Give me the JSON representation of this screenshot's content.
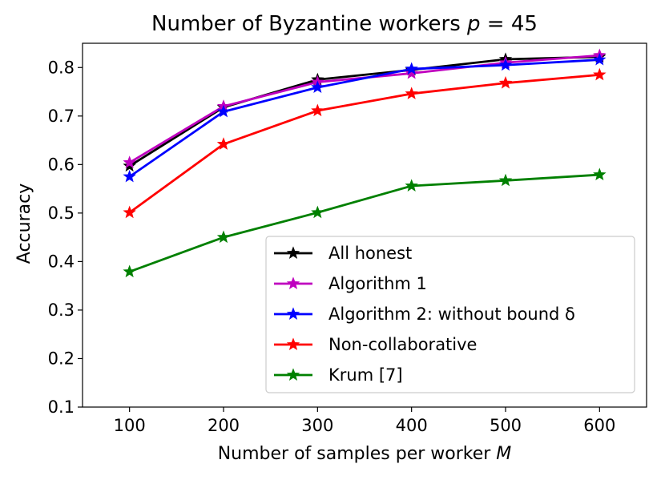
{
  "chart_data": {
    "type": "line",
    "title": "Number of Byzantine workers p = 45",
    "xlabel": "Number of samples per worker M",
    "ylabel": "Accuracy",
    "x": [
      100,
      200,
      300,
      400,
      500,
      600
    ],
    "xlim": [
      50,
      650
    ],
    "ylim": [
      0.1,
      0.85
    ],
    "xticks": [
      100,
      200,
      300,
      400,
      500,
      600
    ],
    "yticks": [
      0.1,
      0.2,
      0.3,
      0.4,
      0.5,
      0.6,
      0.7,
      0.8
    ],
    "xtick_labels": [
      "100",
      "200",
      "300",
      "400",
      "500",
      "600"
    ],
    "ytick_labels": [
      "0.1",
      "0.2",
      "0.3",
      "0.4",
      "0.5",
      "0.6",
      "0.7",
      "0.8"
    ],
    "grid": false,
    "legend_position": "lower-right",
    "marker": "star",
    "series": [
      {
        "name": "All honest",
        "color": "#000000",
        "values": [
          0.597,
          0.718,
          0.775,
          0.795,
          0.817,
          0.822
        ]
      },
      {
        "name": "Algorithm 1",
        "color": "#bf00bf",
        "values": [
          0.604,
          0.72,
          0.77,
          0.788,
          0.81,
          0.825
        ]
      },
      {
        "name": "Algorithm 2: without bound δ",
        "color": "#0000ff",
        "values": [
          0.575,
          0.709,
          0.759,
          0.797,
          0.805,
          0.816
        ]
      },
      {
        "name": "Non-collaborative",
        "color": "#ff0000",
        "values": [
          0.501,
          0.642,
          0.711,
          0.746,
          0.768,
          0.785
        ]
      },
      {
        "name": "Krum [7]",
        "color": "#008000",
        "values": [
          0.379,
          0.45,
          0.501,
          0.556,
          0.567,
          0.579
        ]
      }
    ]
  }
}
